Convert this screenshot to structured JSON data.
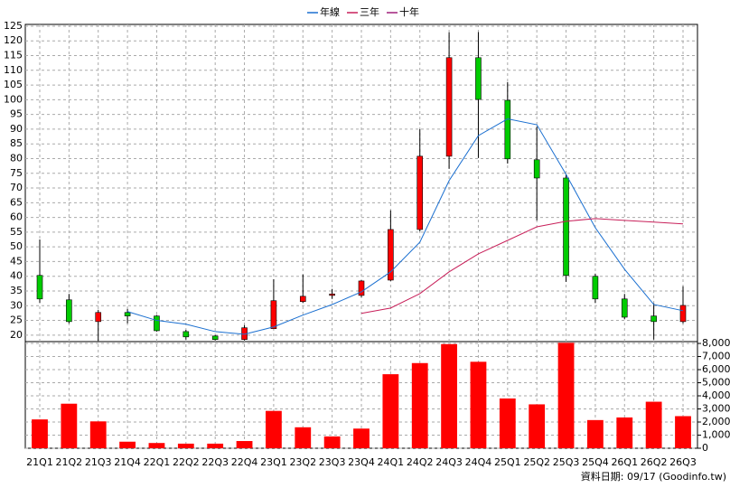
{
  "chart_data": {
    "type": "candlestick",
    "categories": [
      "21Q1",
      "21Q2",
      "21Q3",
      "21Q4",
      "22Q1",
      "22Q2",
      "22Q3",
      "22Q4",
      "23Q1",
      "23Q2",
      "23Q3",
      "23Q4",
      "24Q1",
      "24Q2",
      "24Q3",
      "24Q4",
      "25Q1",
      "25Q2",
      "25Q3",
      "25Q4",
      "26Q1",
      "26Q2",
      "26Q3"
    ],
    "open": [
      40.3,
      32,
      24.6,
      27.7,
      26.5,
      21.2,
      19.7,
      18.5,
      22.2,
      31.4,
      33.5,
      33.5,
      38.7,
      55.9,
      80.8,
      114.3,
      99.8,
      79.6,
      73.4,
      40,
      32.3,
      26.5,
      24.6
    ],
    "high": [
      52.5,
      34,
      28.6,
      28.9,
      26.8,
      21.8,
      20,
      23.4,
      39,
      40.6,
      35.7,
      38.7,
      62.4,
      90,
      122.9,
      123,
      106,
      90.9,
      74.6,
      40.9,
      34,
      30.8,
      36.6
    ],
    "low": [
      31,
      24,
      17.9,
      24,
      21.2,
      18.5,
      18.2,
      18.2,
      22.2,
      31,
      32.3,
      32.9,
      38.4,
      55.3,
      76.5,
      80.2,
      78.3,
      59,
      38.1,
      31,
      25.5,
      18.5,
      24
    ],
    "close": [
      32.3,
      24.6,
      27.7,
      26.5,
      21.5,
      19.4,
      18.5,
      22.5,
      31.7,
      33.2,
      34,
      38.4,
      55.9,
      80.8,
      114.3,
      100.1,
      79.9,
      73.4,
      40.3,
      32.3,
      26.1,
      24.6,
      30.1
    ],
    "up_color": "#ff0000",
    "down_color": "#00cc00",
    "series": [
      {
        "name": "年線",
        "color": "#1a6fd0",
        "values": [
          null,
          null,
          null,
          28,
          25,
          23.7,
          21.2,
          20.3,
          22.8,
          26.8,
          30.4,
          34.7,
          41.5,
          51.6,
          72.5,
          87.8,
          93.5,
          91.5,
          74.6,
          56.5,
          42.4,
          30.4,
          28.3
        ]
      },
      {
        "name": "三年",
        "color": "#c8205a",
        "values": [
          null,
          null,
          null,
          null,
          null,
          null,
          null,
          null,
          null,
          null,
          null,
          27.4,
          29.2,
          34.1,
          41.5,
          47.6,
          52.2,
          56.8,
          58.7,
          59.6,
          59,
          58.4,
          57.8
        ]
      },
      {
        "name": "十年",
        "color": "#a0207a",
        "values": [
          null,
          null,
          null,
          null,
          null,
          null,
          null,
          null,
          null,
          null,
          null,
          null,
          null,
          null,
          null,
          null,
          null,
          null,
          null,
          null,
          null,
          null,
          null
        ]
      }
    ],
    "volume": {
      "color": "#ff0000",
      "axis": "y2",
      "values": [
        2200,
        3400,
        2050,
        500,
        400,
        350,
        350,
        550,
        2850,
        1600,
        900,
        1500,
        5650,
        6500,
        7950,
        6600,
        3800,
        3350,
        8050,
        2150,
        2350,
        3550,
        2450
      ]
    },
    "ylim": [
      17.8,
      125.6
    ],
    "yticks": [
      20,
      25,
      30,
      35,
      40,
      45,
      50,
      55,
      60,
      65,
      70,
      75,
      80,
      85,
      90,
      95,
      100,
      105,
      110,
      115,
      120,
      125
    ],
    "y2lim": [
      0,
      8140
    ],
    "y2ticks": [
      0,
      {
        "value": 1000,
        "label": "1,000"
      },
      {
        "value": 2000,
        "label": "2,000"
      },
      {
        "value": 3000,
        "label": "3,000"
      },
      {
        "value": 4000,
        "label": "4,000"
      },
      {
        "value": 5000,
        "label": "5,000"
      },
      {
        "value": 6000,
        "label": "6,000"
      },
      {
        "value": 7000,
        "label": "7,000"
      },
      {
        "value": 8000,
        "label": "8,000"
      }
    ],
    "grid": true,
    "source": "資料日期: 09/17 (Goodinfo.tw)"
  }
}
